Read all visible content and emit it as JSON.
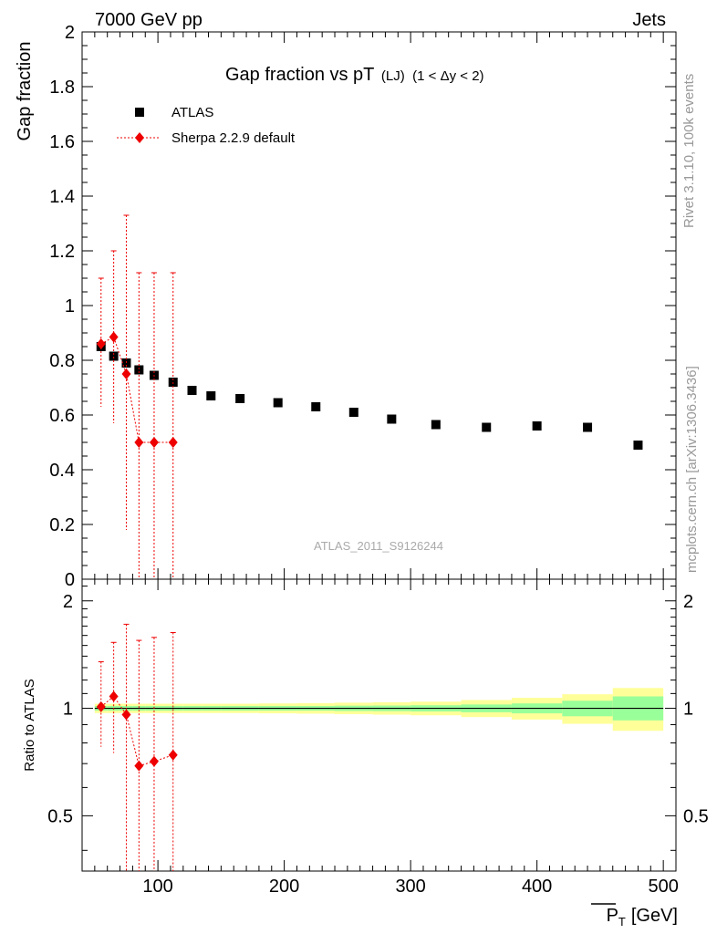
{
  "header": {
    "left": "7000 GeV pp",
    "right": "Jets"
  },
  "side": {
    "rivet": "Rivet 3.1.10,  100k events",
    "mcplots": "mcplots.cern.ch [arXiv:1306.3436]"
  },
  "chart_data": [
    {
      "type": "scatter",
      "panel": "main",
      "title_main": "Gap fraction vs pT",
      "title_sub": "(LJ)",
      "title_range": "(1 < Δy < 2)",
      "ylabel": "Gap fraction",
      "watermark": "ATLAS_2011_S9126244",
      "xlim": [
        40,
        510
      ],
      "ylim": [
        0,
        2
      ],
      "yticks": [
        0,
        0.2,
        0.4,
        0.6,
        0.8,
        1,
        1.2,
        1.4,
        1.6,
        1.8,
        2
      ],
      "ytick_labels": [
        "0",
        "0.2",
        "0.4",
        "0.6",
        "0.8",
        "1",
        "1.2",
        "1.4",
        "1.6",
        "1.8",
        "2"
      ],
      "legend_position": "top-left",
      "series": [
        {
          "name": "ATLAS",
          "style": "black-square",
          "color": "#000000",
          "points": [
            {
              "x": 55,
              "y": 0.85
            },
            {
              "x": 65,
              "y": 0.815
            },
            {
              "x": 75,
              "y": 0.79
            },
            {
              "x": 85,
              "y": 0.765
            },
            {
              "x": 97,
              "y": 0.745
            },
            {
              "x": 112,
              "y": 0.72
            },
            {
              "x": 127,
              "y": 0.69
            },
            {
              "x": 142,
              "y": 0.67
            },
            {
              "x": 165,
              "y": 0.66
            },
            {
              "x": 195,
              "y": 0.645
            },
            {
              "x": 225,
              "y": 0.63
            },
            {
              "x": 255,
              "y": 0.61
            },
            {
              "x": 285,
              "y": 0.585
            },
            {
              "x": 320,
              "y": 0.565
            },
            {
              "x": 360,
              "y": 0.555
            },
            {
              "x": 400,
              "y": 0.56
            },
            {
              "x": 440,
              "y": 0.555
            },
            {
              "x": 480,
              "y": 0.49
            }
          ]
        },
        {
          "name": "Sherpa 2.2.9 default",
          "style": "red-diamond-dotted",
          "color": "#ee0000",
          "points": [
            {
              "x": 55,
              "y": 0.86,
              "ylo": 0.63,
              "yhi": 1.1
            },
            {
              "x": 65,
              "y": 0.885,
              "ylo": 0.57,
              "yhi": 1.2
            },
            {
              "x": 75,
              "y": 0.75,
              "ylo": 0.18,
              "yhi": 1.33
            },
            {
              "x": 85,
              "y": 0.5,
              "ylo": 0.0,
              "yhi": 1.12
            },
            {
              "x": 97,
              "y": 0.5,
              "ylo": 0.0,
              "yhi": 1.12
            },
            {
              "x": 112,
              "y": 0.5,
              "ylo": 0.0,
              "yhi": 1.12
            }
          ]
        }
      ]
    },
    {
      "type": "line",
      "panel": "ratio",
      "ylabel": "Ratio to ATLAS",
      "xlabel": "P",
      "xlabel_sub": "T",
      "xlabel_unit": "[GeV]",
      "xlim": [
        40,
        510
      ],
      "ylim": [
        0.35,
        2.3
      ],
      "y_scale": "log",
      "xticks": [
        100,
        200,
        300,
        400,
        500
      ],
      "xtick_labels": [
        "100",
        "200",
        "300",
        "400",
        "500"
      ],
      "yticks": [
        0.5,
        1,
        2
      ],
      "ytick_labels": [
        "0.5",
        "1",
        "2"
      ],
      "reference_line": 1,
      "band_colors": {
        "inner": "#99ff99",
        "outer": "#ffff99"
      },
      "bands": [
        {
          "x0": 50,
          "x1": 60,
          "inner": [
            0.985,
            1.015
          ],
          "outer": [
            0.97,
            1.03
          ]
        },
        {
          "x0": 60,
          "x1": 70,
          "inner": [
            0.985,
            1.015
          ],
          "outer": [
            0.97,
            1.03
          ]
        },
        {
          "x0": 70,
          "x1": 80,
          "inner": [
            0.985,
            1.015
          ],
          "outer": [
            0.97,
            1.03
          ]
        },
        {
          "x0": 80,
          "x1": 90,
          "inner": [
            0.985,
            1.015
          ],
          "outer": [
            0.97,
            1.03
          ]
        },
        {
          "x0": 90,
          "x1": 105,
          "inner": [
            0.985,
            1.015
          ],
          "outer": [
            0.97,
            1.03
          ]
        },
        {
          "x0": 105,
          "x1": 120,
          "inner": [
            0.985,
            1.015
          ],
          "outer": [
            0.97,
            1.03
          ]
        },
        {
          "x0": 120,
          "x1": 135,
          "inner": [
            0.985,
            1.015
          ],
          "outer": [
            0.97,
            1.03
          ]
        },
        {
          "x0": 135,
          "x1": 150,
          "inner": [
            0.985,
            1.015
          ],
          "outer": [
            0.97,
            1.03
          ]
        },
        {
          "x0": 150,
          "x1": 180,
          "inner": [
            0.985,
            1.015
          ],
          "outer": [
            0.97,
            1.03
          ]
        },
        {
          "x0": 180,
          "x1": 210,
          "inner": [
            0.985,
            1.015
          ],
          "outer": [
            0.968,
            1.032
          ]
        },
        {
          "x0": 210,
          "x1": 240,
          "inner": [
            0.985,
            1.015
          ],
          "outer": [
            0.966,
            1.034
          ]
        },
        {
          "x0": 240,
          "x1": 270,
          "inner": [
            0.983,
            1.017
          ],
          "outer": [
            0.963,
            1.037
          ]
        },
        {
          "x0": 270,
          "x1": 300,
          "inner": [
            0.982,
            1.018
          ],
          "outer": [
            0.96,
            1.04
          ]
        },
        {
          "x0": 300,
          "x1": 340,
          "inner": [
            0.98,
            1.02
          ],
          "outer": [
            0.956,
            1.044
          ]
        },
        {
          "x0": 340,
          "x1": 380,
          "inner": [
            0.975,
            1.025
          ],
          "outer": [
            0.945,
            1.055
          ]
        },
        {
          "x0": 380,
          "x1": 420,
          "inner": [
            0.968,
            1.032
          ],
          "outer": [
            0.93,
            1.07
          ]
        },
        {
          "x0": 420,
          "x1": 460,
          "inner": [
            0.95,
            1.05
          ],
          "outer": [
            0.905,
            1.095
          ]
        },
        {
          "x0": 460,
          "x1": 500,
          "inner": [
            0.925,
            1.08
          ],
          "outer": [
            0.865,
            1.14
          ]
        }
      ],
      "series": [
        {
          "name": "Sherpa 2.2.9 default",
          "color": "#ee0000",
          "points": [
            {
              "x": 55,
              "y": 1.01,
              "ylo": 0.78,
              "yhi": 1.35
            },
            {
              "x": 65,
              "y": 1.08,
              "ylo": 0.75,
              "yhi": 1.53
            },
            {
              "x": 75,
              "y": 0.96,
              "ylo": 0.35,
              "yhi": 1.72
            },
            {
              "x": 85,
              "y": 0.69,
              "ylo": 0.35,
              "yhi": 1.55
            },
            {
              "x": 97,
              "y": 0.71,
              "ylo": 0.35,
              "yhi": 1.58
            },
            {
              "x": 112,
              "y": 0.74,
              "ylo": 0.35,
              "yhi": 1.63
            }
          ]
        }
      ]
    }
  ]
}
